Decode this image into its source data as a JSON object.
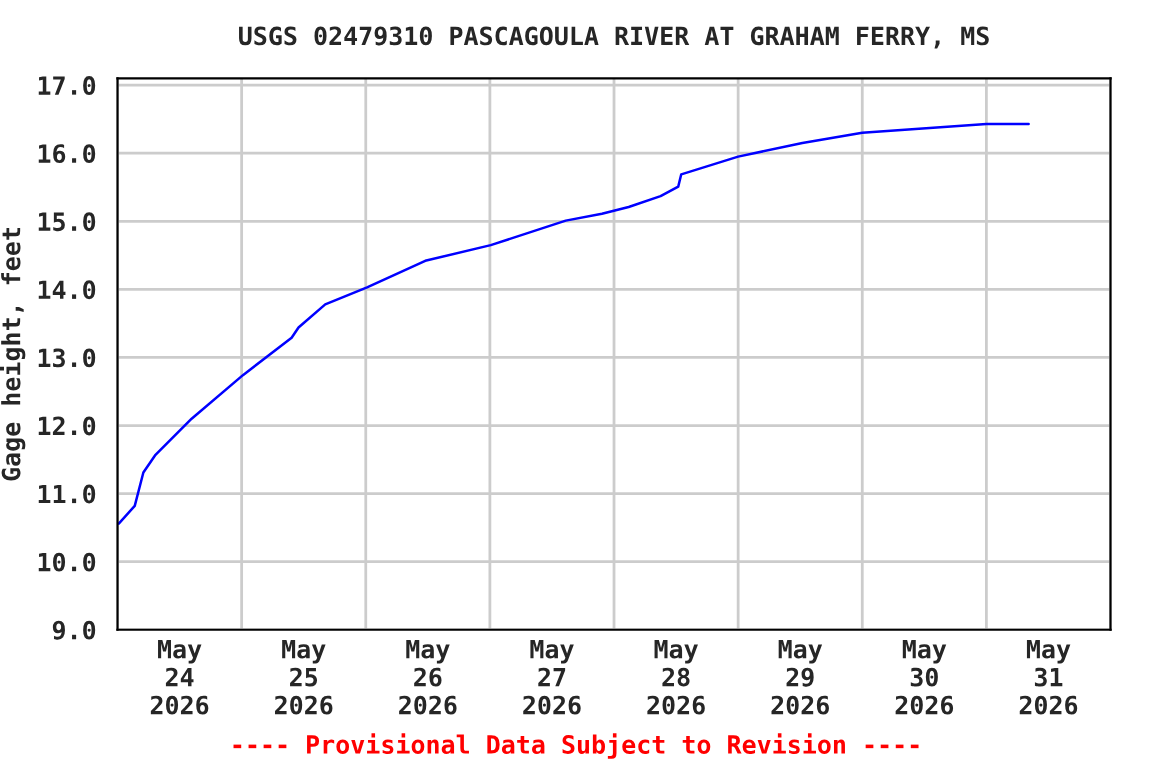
{
  "chart_data": {
    "type": "line",
    "title": "USGS 02479310 PASCAGOULA RIVER AT GRAHAM FERRY, MS",
    "ylabel": "Gage height, feet",
    "annotations": [
      "---- Provisional Data Subject to Revision ----"
    ],
    "x": [
      "2026-05-24T00:15",
      "2026-05-24T03:20",
      "2026-05-24T05:00",
      "2026-05-24T07:15",
      "2026-05-24T14:20",
      "2026-05-25T00:15",
      "2026-05-25T09:40",
      "2026-05-25T11:00",
      "2026-05-25T16:10",
      "2026-05-26T00:15",
      "2026-05-26T11:30",
      "2026-05-27T00:10",
      "2026-05-27T14:40",
      "2026-05-27T21:40",
      "2026-05-28T02:50",
      "2026-05-28T09:00",
      "2026-05-28T12:25",
      "2026-05-28T13:00",
      "2026-05-29T00:00",
      "2026-05-29T12:25",
      "2026-05-30T00:00",
      "2026-05-31T00:00",
      "2026-05-31T08:10"
    ],
    "series": [
      {
        "color": "#0000ff",
        "values": [
          10.56,
          10.82,
          11.31,
          11.56,
          12.1,
          12.74,
          13.29,
          13.44,
          13.78,
          14.03,
          14.42,
          14.65,
          15.01,
          15.11,
          15.21,
          15.37,
          15.51,
          15.69,
          15.95,
          16.15,
          16.3,
          16.43,
          16.43
        ]
      }
    ],
    "xlim": [
      "2026-05-24T00:00",
      "2026-06-01T00:00"
    ],
    "xticks": [
      {
        "value": "2026-05-24T00:00",
        "label": null
      },
      {
        "value": "2026-05-24T12:00",
        "label": "May\n24\n2026"
      },
      {
        "value": "2026-05-25T00:00",
        "label": null
      },
      {
        "value": "2026-05-25T12:00",
        "label": "May\n25\n2026"
      },
      {
        "value": "2026-05-26T00:00",
        "label": null
      },
      {
        "value": "2026-05-26T12:00",
        "label": "May\n26\n2026"
      },
      {
        "value": "2026-05-27T00:00",
        "label": null
      },
      {
        "value": "2026-05-27T12:00",
        "label": "May\n27\n2026"
      },
      {
        "value": "2026-05-28T00:00",
        "label": null
      },
      {
        "value": "2026-05-28T12:00",
        "label": "May\n28\n2026"
      },
      {
        "value": "2026-05-29T00:00",
        "label": null
      },
      {
        "value": "2026-05-29T12:00",
        "label": "May\n29\n2026"
      },
      {
        "value": "2026-05-30T00:00",
        "label": null
      },
      {
        "value": "2026-05-30T12:00",
        "label": "May\n30\n2026"
      },
      {
        "value": "2026-05-31T00:00",
        "label": null
      },
      {
        "value": "2026-05-31T12:00",
        "label": "May\n31\n2026"
      },
      {
        "value": "2026-06-01T00:00",
        "label": null
      }
    ],
    "ylim": [
      9,
      17.1
    ],
    "yticks": [
      {
        "value": 9,
        "label": "9.0"
      },
      {
        "value": 10,
        "label": "10.0"
      },
      {
        "value": 11,
        "label": "11.0"
      },
      {
        "value": 12,
        "label": "12.0"
      },
      {
        "value": 13,
        "label": "13.0"
      },
      {
        "value": 14,
        "label": "14.0"
      },
      {
        "value": 15,
        "label": "15.0"
      },
      {
        "value": 16,
        "label": "16.0"
      },
      {
        "value": 17,
        "label": "17.0"
      }
    ],
    "grid": true,
    "legend": false,
    "marker": "none",
    "line_style": "solid"
  }
}
